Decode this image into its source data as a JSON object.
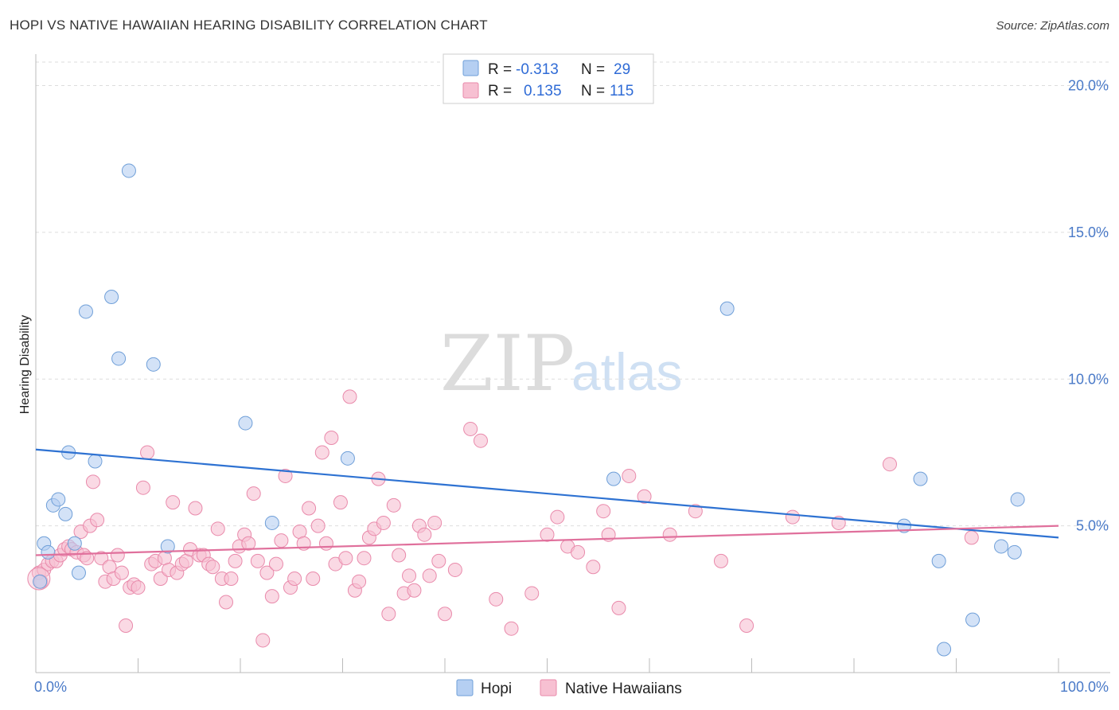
{
  "title": "HOPI VS NATIVE HAWAIIAN HEARING DISABILITY CORRELATION CHART",
  "source": "Source: ZipAtlas.com",
  "watermark": {
    "zip": "ZIP",
    "atlas": "atlas"
  },
  "legend": {
    "rows": [
      {
        "r_label": "R =",
        "r_value": "-0.313",
        "n_label": "N =",
        "n_value": "29"
      },
      {
        "r_label": "R =",
        "r_value": "0.135",
        "n_label": "N =",
        "n_value": "115"
      }
    ]
  },
  "colors": {
    "hopi_fill": "#b5cff2",
    "hopi_stroke": "#6f9fd8",
    "hopi_line": "#2e72d2",
    "hawaiian_fill": "#f7c0d2",
    "hawaiian_stroke": "#e98aab",
    "hawaiian_line": "#e0709c",
    "axis_text": "#4a7ac8",
    "grid": "#dddddd"
  },
  "chart_data": {
    "type": "scatter",
    "title": "HOPI VS NATIVE HAWAIIAN HEARING DISABILITY CORRELATION CHART",
    "xlabel": "",
    "ylabel": "Hearing Disability",
    "xlim": [
      0,
      100
    ],
    "ylim": [
      0,
      20.8
    ],
    "x_tick_labels": [
      "0.0%",
      "100.0%"
    ],
    "y_ticks": [
      5,
      10,
      15,
      20
    ],
    "y_tick_labels": [
      "5.0%",
      "10.0%",
      "15.0%",
      "20.0%"
    ],
    "legend_position": "top-center",
    "series": [
      {
        "name": "Hopi",
        "color": "#b5cff2",
        "r": -0.313,
        "n": 29,
        "trend": {
          "x": [
            0,
            100
          ],
          "y": [
            7.6,
            4.6
          ]
        },
        "points": [
          [
            0.4,
            3.1
          ],
          [
            0.8,
            4.4
          ],
          [
            1.2,
            4.1
          ],
          [
            1.7,
            5.7
          ],
          [
            2.2,
            5.9
          ],
          [
            2.9,
            5.4
          ],
          [
            3.2,
            7.5
          ],
          [
            3.8,
            4.4
          ],
          [
            4.2,
            3.4
          ],
          [
            4.9,
            12.3
          ],
          [
            5.8,
            7.2
          ],
          [
            7.4,
            12.8
          ],
          [
            8.1,
            10.7
          ],
          [
            9.1,
            17.1
          ],
          [
            11.5,
            10.5
          ],
          [
            12.9,
            4.3
          ],
          [
            20.5,
            8.5
          ],
          [
            23.1,
            5.1
          ],
          [
            30.5,
            7.3
          ],
          [
            56.5,
            6.6
          ],
          [
            67.6,
            12.4
          ],
          [
            84.9,
            5.0
          ],
          [
            86.5,
            6.6
          ],
          [
            88.3,
            3.8
          ],
          [
            88.8,
            0.8
          ],
          [
            91.6,
            1.8
          ],
          [
            94.4,
            4.3
          ],
          [
            95.7,
            4.1
          ],
          [
            96.0,
            5.9
          ]
        ]
      },
      {
        "name": "Native Hawaiians",
        "color": "#f7c0d2",
        "r": 0.135,
        "n": 115,
        "trend": {
          "x": [
            0,
            100
          ],
          "y": [
            4.0,
            5.0
          ]
        },
        "points": [
          [
            0.3,
            3.4
          ],
          [
            0.5,
            3.1
          ],
          [
            0.8,
            3.5
          ],
          [
            1.2,
            3.7
          ],
          [
            1.6,
            3.8
          ],
          [
            2.0,
            3.8
          ],
          [
            2.4,
            4.0
          ],
          [
            2.8,
            4.2
          ],
          [
            3.2,
            4.3
          ],
          [
            3.5,
            4.2
          ],
          [
            4.0,
            4.1
          ],
          [
            4.4,
            4.8
          ],
          [
            4.7,
            4.0
          ],
          [
            5.0,
            3.9
          ],
          [
            5.3,
            5.0
          ],
          [
            5.6,
            6.5
          ],
          [
            6.0,
            5.2
          ],
          [
            6.4,
            3.9
          ],
          [
            6.8,
            3.1
          ],
          [
            7.2,
            3.6
          ],
          [
            7.6,
            3.2
          ],
          [
            8.0,
            4.0
          ],
          [
            8.4,
            3.4
          ],
          [
            8.8,
            1.6
          ],
          [
            9.2,
            2.9
          ],
          [
            9.6,
            3.0
          ],
          [
            10.0,
            2.9
          ],
          [
            10.5,
            6.3
          ],
          [
            10.9,
            7.5
          ],
          [
            11.3,
            3.7
          ],
          [
            11.7,
            3.8
          ],
          [
            12.2,
            3.2
          ],
          [
            12.6,
            3.9
          ],
          [
            13.0,
            3.5
          ],
          [
            13.4,
            5.8
          ],
          [
            13.8,
            3.4
          ],
          [
            14.3,
            3.7
          ],
          [
            14.7,
            3.8
          ],
          [
            15.1,
            4.2
          ],
          [
            15.6,
            5.6
          ],
          [
            16.0,
            4.0
          ],
          [
            16.4,
            4.0
          ],
          [
            16.9,
            3.7
          ],
          [
            17.3,
            3.6
          ],
          [
            17.8,
            4.9
          ],
          [
            18.2,
            3.2
          ],
          [
            18.6,
            2.4
          ],
          [
            19.1,
            3.2
          ],
          [
            19.5,
            3.8
          ],
          [
            19.9,
            4.3
          ],
          [
            20.4,
            4.7
          ],
          [
            20.8,
            4.4
          ],
          [
            21.3,
            6.1
          ],
          [
            21.7,
            3.8
          ],
          [
            22.2,
            1.1
          ],
          [
            22.6,
            3.4
          ],
          [
            23.1,
            2.6
          ],
          [
            23.5,
            3.7
          ],
          [
            24.0,
            4.5
          ],
          [
            24.4,
            6.7
          ],
          [
            24.9,
            2.9
          ],
          [
            25.3,
            3.2
          ],
          [
            25.8,
            4.8
          ],
          [
            26.2,
            4.4
          ],
          [
            26.7,
            5.6
          ],
          [
            27.1,
            3.2
          ],
          [
            27.6,
            5.0
          ],
          [
            28.0,
            7.5
          ],
          [
            28.4,
            4.4
          ],
          [
            28.9,
            8.0
          ],
          [
            29.3,
            3.7
          ],
          [
            29.8,
            5.8
          ],
          [
            30.3,
            3.9
          ],
          [
            30.7,
            9.4
          ],
          [
            31.2,
            2.8
          ],
          [
            31.6,
            3.1
          ],
          [
            32.1,
            3.9
          ],
          [
            32.6,
            4.6
          ],
          [
            33.1,
            4.9
          ],
          [
            33.5,
            6.6
          ],
          [
            34.0,
            5.1
          ],
          [
            34.5,
            2.0
          ],
          [
            35.0,
            5.7
          ],
          [
            35.5,
            4.0
          ],
          [
            36.0,
            2.7
          ],
          [
            36.5,
            3.3
          ],
          [
            37.0,
            2.8
          ],
          [
            37.5,
            5.0
          ],
          [
            38.0,
            4.7
          ],
          [
            38.5,
            3.3
          ],
          [
            39.0,
            5.1
          ],
          [
            39.4,
            3.8
          ],
          [
            40.0,
            2.0
          ],
          [
            41.0,
            3.5
          ],
          [
            42.5,
            8.3
          ],
          [
            43.5,
            7.9
          ],
          [
            45.0,
            2.5
          ],
          [
            46.5,
            1.5
          ],
          [
            48.5,
            2.7
          ],
          [
            50.0,
            4.7
          ],
          [
            51.0,
            5.3
          ],
          [
            52.0,
            4.3
          ],
          [
            53.0,
            4.1
          ],
          [
            54.5,
            3.6
          ],
          [
            55.5,
            5.5
          ],
          [
            56.0,
            4.7
          ],
          [
            57.0,
            2.2
          ],
          [
            58.0,
            6.7
          ],
          [
            59.5,
            6.0
          ],
          [
            62.0,
            4.7
          ],
          [
            64.5,
            5.5
          ],
          [
            67.0,
            3.8
          ],
          [
            69.5,
            1.6
          ],
          [
            74.0,
            5.3
          ],
          [
            78.5,
            5.1
          ],
          [
            83.5,
            7.1
          ],
          [
            91.5,
            4.6
          ]
        ]
      }
    ]
  }
}
